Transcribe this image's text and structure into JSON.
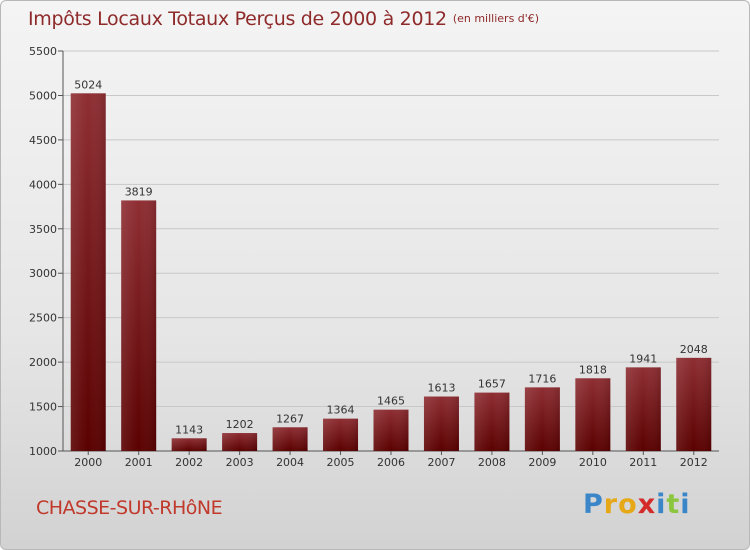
{
  "header": {
    "title": "Impôts Locaux Totaux Perçus de 2000 à 2012",
    "unit": "(en milliers d'€)"
  },
  "footer": {
    "commune": "CHASSE-SUR-RHôNE",
    "brand_letters": [
      "P",
      "r",
      "o",
      "x",
      "i",
      "t",
      "i"
    ],
    "brand_colors": [
      "#3a86c8",
      "#e6a817",
      "#e6a817",
      "#d42a2a",
      "#3a86c8",
      "#8cc63f",
      "#3a86c8"
    ]
  },
  "colors": {
    "bar_top": "#8e2e33",
    "bar_bottom": "#5a0000",
    "grid": "#c8c8c8"
  },
  "chart_data": {
    "type": "bar",
    "title": "Impôts Locaux Totaux Perçus de 2000 à 2012",
    "xlabel": "",
    "ylabel": "",
    "categories": [
      "2000",
      "2001",
      "2002",
      "2003",
      "2004",
      "2005",
      "2006",
      "2007",
      "2008",
      "2009",
      "2010",
      "2011",
      "2012"
    ],
    "values": [
      5024,
      3819,
      1143,
      1202,
      1267,
      1364,
      1465,
      1613,
      1657,
      1716,
      1818,
      1941,
      2048
    ],
    "ylim": [
      1000,
      5500
    ],
    "yticks": [
      "1000",
      "1500",
      "2000",
      "2500",
      "3000",
      "3500",
      "4000",
      "4500",
      "5000",
      "5500"
    ],
    "grid": true
  }
}
